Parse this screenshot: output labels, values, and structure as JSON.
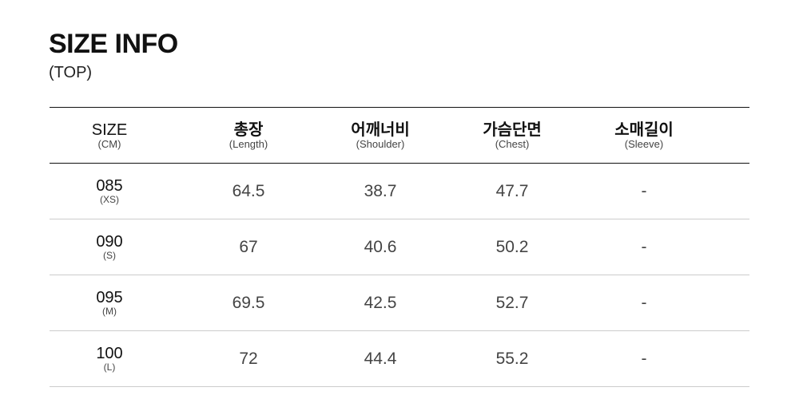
{
  "title": "SIZE INFO",
  "subtitle": "(TOP)",
  "headers": [
    {
      "main": "SIZE",
      "sub": "(CM)"
    },
    {
      "main": "총장",
      "sub": "(Length)"
    },
    {
      "main": "어깨너비",
      "sub": "(Shoulder)"
    },
    {
      "main": "가슴단면",
      "sub": "(Chest)"
    },
    {
      "main": "소매길이",
      "sub": "(Sleeve)"
    }
  ],
  "rows": [
    {
      "size": "085",
      "label": "(XS)",
      "values": [
        "64.5",
        "38.7",
        "47.7",
        "-"
      ]
    },
    {
      "size": "090",
      "label": "(S)",
      "values": [
        "67",
        "40.6",
        "50.2",
        "-"
      ]
    },
    {
      "size": "095",
      "label": "(M)",
      "values": [
        "69.5",
        "42.5",
        "52.7",
        "-"
      ]
    },
    {
      "size": "100",
      "label": "(L)",
      "values": [
        "72",
        "44.4",
        "55.2",
        "-"
      ]
    }
  ]
}
